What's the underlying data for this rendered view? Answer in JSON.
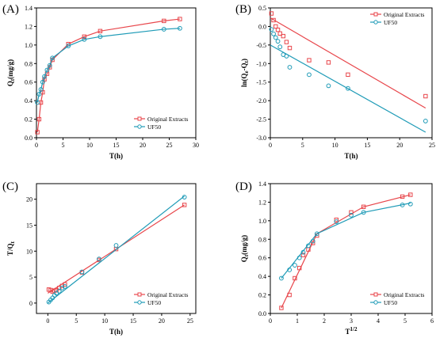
{
  "colors": {
    "original": "#e8464b",
    "uf50": "#1f9bb7"
  },
  "chart_data": [
    {
      "panel_label": "(A)",
      "type": "line",
      "xlabel": "T(h)",
      "ylabel": "Qt(mg/g)",
      "xlim": [
        0,
        30
      ],
      "ylim": [
        0,
        1.4
      ],
      "xticks": [
        0,
        5,
        10,
        15,
        20,
        25,
        30
      ],
      "yticks": [
        0,
        0.2,
        0.4,
        0.6,
        0.8,
        1.0,
        1.2,
        1.4
      ],
      "ytick_labels": [
        "0.0",
        "0.2",
        "0.4",
        "0.6",
        "0.8",
        "1.0",
        "1.2",
        "1.4"
      ],
      "legend_position": "bottom-right",
      "series": [
        {
          "name": "Original Extracts",
          "x": [
            0.17,
            0.5,
            0.83,
            1.17,
            1.5,
            2,
            2.5,
            3,
            6,
            9,
            12,
            24,
            27
          ],
          "y": [
            0.06,
            0.2,
            0.38,
            0.49,
            0.63,
            0.69,
            0.76,
            0.84,
            1.01,
            1.09,
            1.15,
            1.26,
            1.28
          ],
          "markers": "square",
          "fit_line": true
        },
        {
          "name": "UF50",
          "x": [
            0.17,
            0.5,
            0.83,
            1.17,
            1.5,
            2,
            2.5,
            3,
            6,
            9,
            12,
            24,
            27
          ],
          "y": [
            0.38,
            0.47,
            0.52,
            0.6,
            0.66,
            0.73,
            0.78,
            0.86,
            0.99,
            1.06,
            1.09,
            1.17,
            1.18
          ],
          "markers": "circle",
          "fit_line": true
        }
      ]
    },
    {
      "panel_label": "(B)",
      "type": "scatter",
      "xlabel": "T(h)",
      "ylabel": "ln(Qe-Qt)",
      "xlim": [
        0,
        25
      ],
      "ylim": [
        -3.0,
        0.5
      ],
      "xticks": [
        0,
        5,
        10,
        15,
        20,
        25
      ],
      "yticks": [
        -3.0,
        -2.5,
        -2.0,
        -1.5,
        -1.0,
        -0.5,
        0.0,
        0.5
      ],
      "ytick_labels": [
        "-3.0",
        "-2.5",
        "-2.0",
        "-1.5",
        "-1.0",
        "-0.5",
        "0.0",
        "0.5"
      ],
      "legend_position": "top-right",
      "series": [
        {
          "name": "Original Extracts",
          "x": [
            0.17,
            0.5,
            0.83,
            1.17,
            1.5,
            2,
            2.5,
            3,
            6,
            9,
            12,
            24
          ],
          "y": [
            0.35,
            0.17,
            0.0,
            -0.09,
            -0.19,
            -0.26,
            -0.42,
            -0.58,
            -0.91,
            -0.97,
            -1.3,
            -1.88
          ],
          "markers": "square",
          "fit": [
            [
              0,
              0.23
            ],
            [
              24,
              -2.2
            ]
          ]
        },
        {
          "name": "UF50",
          "x": [
            0.17,
            0.5,
            0.83,
            1.17,
            1.5,
            2,
            2.5,
            3,
            6,
            9,
            12,
            24
          ],
          "y": [
            -0.08,
            -0.2,
            -0.3,
            -0.4,
            -0.55,
            -0.76,
            -0.8,
            -1.1,
            -1.3,
            -1.6,
            -1.67,
            -2.55
          ],
          "markers": "circle",
          "fit": [
            [
              0,
              -0.5
            ],
            [
              24,
              -2.85
            ]
          ]
        }
      ]
    },
    {
      "panel_label": "(C)",
      "type": "scatter",
      "xlabel": "T(h)",
      "ylabel": "T/Qt",
      "xlim": [
        -2,
        26
      ],
      "ylim": [
        -2,
        23
      ],
      "xticks": [
        0,
        5,
        10,
        15,
        20,
        25
      ],
      "yticks": [
        0,
        5,
        10,
        15,
        20
      ],
      "ytick_labels": [
        "0",
        "5",
        "10",
        "15",
        "20"
      ],
      "legend_position": "bottom-right",
      "series": [
        {
          "name": "Original Extracts",
          "x": [
            0.17,
            0.5,
            0.83,
            1.17,
            1.5,
            2,
            2.5,
            3,
            6,
            9,
            12,
            24
          ],
          "y": [
            2.6,
            2.5,
            2.2,
            2.4,
            2.5,
            2.9,
            3.3,
            3.6,
            5.9,
            8.3,
            10.4,
            18.9
          ],
          "markers": "square",
          "fit": [
            [
              0,
              1.9
            ],
            [
              24,
              18.9
            ]
          ]
        },
        {
          "name": "UF50",
          "x": [
            0.17,
            0.5,
            0.83,
            1.17,
            1.5,
            2,
            2.5,
            3,
            6,
            9,
            12,
            24
          ],
          "y": [
            0.2,
            0.6,
            1.0,
            1.5,
            1.9,
            2.3,
            2.9,
            3.2,
            6.0,
            8.5,
            11.1,
            20.4
          ],
          "markers": "circle",
          "fit": [
            [
              0,
              0.0
            ],
            [
              24,
              20.6
            ]
          ]
        }
      ]
    },
    {
      "panel_label": "(D)",
      "type": "line",
      "xlabel": "T1/2",
      "ylabel": "Qt(mg/g)",
      "xlim": [
        0,
        6
      ],
      "ylim": [
        0,
        1.4
      ],
      "xticks": [
        0,
        1,
        2,
        3,
        4,
        5,
        6
      ],
      "yticks": [
        0,
        0.2,
        0.4,
        0.6,
        0.8,
        1.0,
        1.2,
        1.4
      ],
      "ytick_labels": [
        "0.0",
        "0.2",
        "0.4",
        "0.6",
        "0.8",
        "1.0",
        "1.2",
        "1.4"
      ],
      "legend_position": "bottom-right",
      "series": [
        {
          "name": "Original Extracts",
          "x": [
            0.41,
            0.71,
            0.91,
            1.08,
            1.22,
            1.41,
            1.58,
            1.73,
            2.45,
            3.0,
            3.46,
            4.9,
            5.2
          ],
          "y": [
            0.06,
            0.2,
            0.38,
            0.49,
            0.63,
            0.69,
            0.76,
            0.84,
            1.01,
            1.09,
            1.15,
            1.26,
            1.28
          ],
          "markers": "square",
          "fit": [
            [
              0.41,
              0.06
            ],
            [
              1.73,
              0.86
            ],
            [
              3.46,
              1.15
            ],
            [
              5.2,
              1.28
            ]
          ]
        },
        {
          "name": "UF50",
          "x": [
            0.41,
            0.71,
            0.91,
            1.08,
            1.22,
            1.41,
            1.58,
            1.73,
            2.45,
            3.0,
            3.46,
            4.9,
            5.2
          ],
          "y": [
            0.38,
            0.47,
            0.52,
            0.6,
            0.66,
            0.73,
            0.78,
            0.86,
            0.99,
            1.06,
            1.09,
            1.17,
            1.18
          ],
          "markers": "circle",
          "fit": [
            [
              0.41,
              0.38
            ],
            [
              1.73,
              0.86
            ],
            [
              3.46,
              1.09
            ],
            [
              5.2,
              1.19
            ]
          ]
        }
      ]
    }
  ]
}
